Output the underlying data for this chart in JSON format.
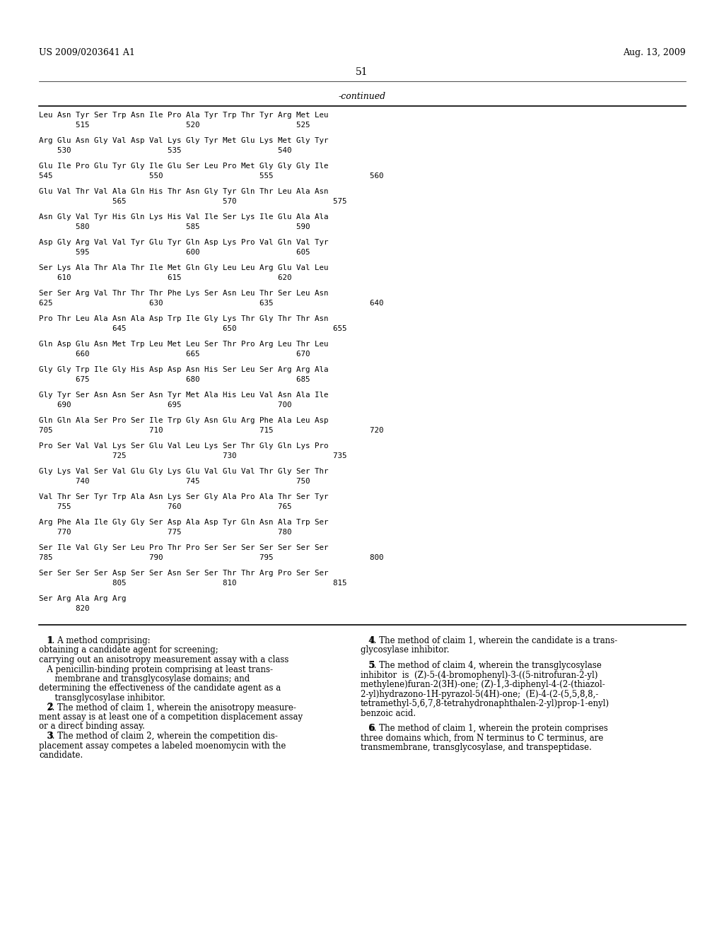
{
  "background_color": "#ffffff",
  "header_left": "US 2009/0203641 A1",
  "header_right": "Aug. 13, 2009",
  "page_number": "51",
  "continued_label": "-continued",
  "sequence_blocks": [
    {
      "seq": "Leu Asn Tyr Ser Trp Asn Ile Pro Ala Tyr Trp Thr Tyr Arg Met Leu",
      "num": "        515                     520                     525        "
    },
    {
      "seq": "Arg Glu Asn Gly Val Asp Val Lys Gly Tyr Met Glu Lys Met Gly Tyr",
      "num": "    530                     535                     540           "
    },
    {
      "seq": "Glu Ile Pro Glu Tyr Gly Ile Glu Ser Leu Pro Met Gly Gly Gly Ile",
      "num": "545                     550                     555                     560"
    },
    {
      "seq": "Glu Val Thr Val Ala Gln His Thr Asn Gly Tyr Gln Thr Leu Ala Asn",
      "num": "                565                     570                     575   "
    },
    {
      "seq": "Asn Gly Val Tyr His Gln Lys His Val Ile Ser Lys Ile Glu Ala Ala",
      "num": "        580                     585                     590        "
    },
    {
      "seq": "Asp Gly Arg Val Val Tyr Glu Tyr Gln Asp Lys Pro Val Gln Val Tyr",
      "num": "        595                     600                     605        "
    },
    {
      "seq": "Ser Lys Ala Thr Ala Thr Ile Met Gln Gly Leu Leu Arg Glu Val Leu",
      "num": "    610                     615                     620           "
    },
    {
      "seq": "Ser Ser Arg Val Thr Thr Thr Phe Lys Ser Asn Leu Thr Ser Leu Asn",
      "num": "625                     630                     635                     640"
    },
    {
      "seq": "Pro Thr Leu Ala Asn Ala Asp Trp Ile Gly Lys Thr Gly Thr Thr Asn",
      "num": "                645                     650                     655   "
    },
    {
      "seq": "Gln Asp Glu Asn Met Trp Leu Met Leu Ser Thr Pro Arg Leu Thr Leu",
      "num": "        660                     665                     670        "
    },
    {
      "seq": "Gly Gly Trp Ile Gly His Asp Asp Asn His Ser Leu Ser Arg Arg Ala",
      "num": "        675                     680                     685        "
    },
    {
      "seq": "Gly Tyr Ser Asn Asn Ser Asn Tyr Met Ala His Leu Val Asn Ala Ile",
      "num": "    690                     695                     700           "
    },
    {
      "seq": "Gln Gln Ala Ser Pro Ser Ile Trp Gly Asn Glu Arg Phe Ala Leu Asp",
      "num": "705                     710                     715                     720"
    },
    {
      "seq": "Pro Ser Val Val Lys Ser Glu Val Leu Lys Ser Thr Gly Gln Lys Pro",
      "num": "                725                     730                     735   "
    },
    {
      "seq": "Gly Lys Val Ser Val Glu Gly Lys Glu Val Glu Val Thr Gly Ser Thr",
      "num": "        740                     745                     750        "
    },
    {
      "seq": "Val Thr Ser Tyr Trp Ala Asn Lys Ser Gly Ala Pro Ala Thr Ser Tyr",
      "num": "    755                     760                     765           "
    },
    {
      "seq": "Arg Phe Ala Ile Gly Gly Ser Asp Ala Asp Tyr Gln Asn Ala Trp Ser",
      "num": "    770                     775                     780           "
    },
    {
      "seq": "Ser Ile Val Gly Ser Leu Pro Thr Pro Ser Ser Ser Ser Ser Ser Ser",
      "num": "785                     790                     795                     800"
    },
    {
      "seq": "Ser Ser Ser Ser Asp Ser Ser Asn Ser Ser Thr Thr Arg Pro Ser Ser",
      "num": "                805                     810                     815   "
    },
    {
      "seq": "Ser Arg Ala Arg Arg",
      "num": "        820          "
    }
  ],
  "left_claims": [
    {
      "indent": true,
      "text": "   1. A method comprising:",
      "bold_prefix": "   1"
    },
    {
      "indent": false,
      "text": "obtaining a candidate agent for screening;"
    },
    {
      "indent": false,
      "text": "carrying out an anisotropy measurement assay with a class"
    },
    {
      "indent": true,
      "text": "   A penicillin-binding protein comprising at least trans-"
    },
    {
      "indent": true,
      "text": "      membrane and transglycosylase domains; and"
    },
    {
      "indent": false,
      "text": "determining the effectiveness of the candidate agent as a"
    },
    {
      "indent": true,
      "text": "      transglycosylase inhibitor."
    },
    {
      "indent": true,
      "text": "   2. The method of claim 1, wherein the anisotropy measure-",
      "bold_prefix": "   2"
    },
    {
      "indent": false,
      "text": "ment assay is at least one of a competition displacement assay"
    },
    {
      "indent": false,
      "text": "or a direct binding assay."
    },
    {
      "indent": true,
      "text": "   3. The method of claim 2, wherein the competition dis-",
      "bold_prefix": "   3"
    },
    {
      "indent": false,
      "text": "placement assay competes a labeled moenomycin with the"
    },
    {
      "indent": false,
      "text": "candidate."
    }
  ],
  "right_claims": [
    {
      "text": "   4. The method of claim 1, wherein the candidate is a trans-",
      "bold_prefix": "   4"
    },
    {
      "text": "glycosylase inhibitor."
    },
    {
      "text": ""
    },
    {
      "text": "   5. The method of claim 4, wherein the transglycosylase",
      "bold_prefix": "   5"
    },
    {
      "text": "inhibitor  is  (Z)-5-(4-bromophenyl)-3-((5-nitrofuran-2-yl)"
    },
    {
      "text": "methylene)furan-2(3H)-one; (Z)-1,3-diphenyl-4-(2-(thiazol-"
    },
    {
      "text": "2-yl)hydrazono-1H-pyrazol-5(4H)-one;  (E)-4-(2-(5,5,8,8,-"
    },
    {
      "text": "tetramethyl-5,6,7,8-tetrahydronaphthalen-2-yl)prop-1-enyl)"
    },
    {
      "text": "benzoic acid."
    },
    {
      "text": ""
    },
    {
      "text": "   6. The method of claim 1, wherein the protein comprises",
      "bold_prefix": "   6"
    },
    {
      "text": "three domains which, from N terminus to C terminus, are"
    },
    {
      "text": "transmembrane, transglycosylase, and transpeptidase."
    }
  ]
}
